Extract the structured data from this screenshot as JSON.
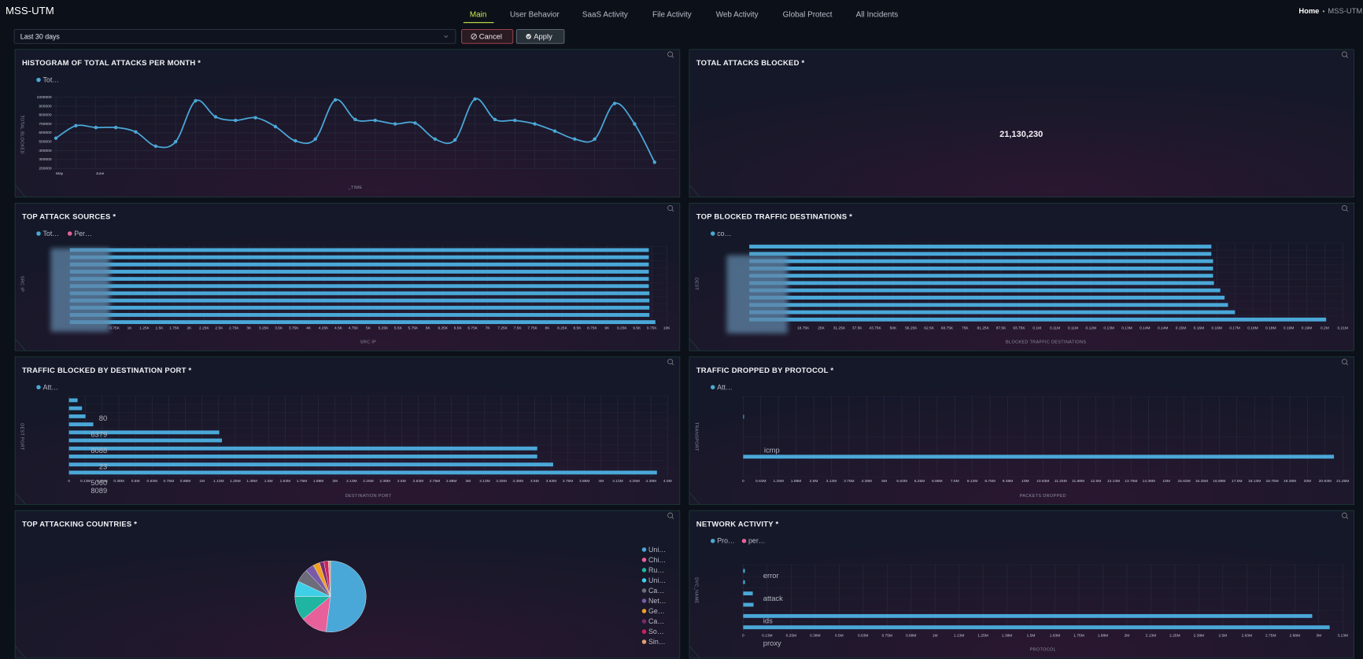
{
  "app_title": "MSS-UTM",
  "nav": [
    {
      "label": "Main",
      "active": true
    },
    {
      "label": "User Behavior",
      "active": false
    },
    {
      "label": "SaaS Activity",
      "active": false
    },
    {
      "label": "File Activity",
      "active": false
    },
    {
      "label": "Web Activity",
      "active": false
    },
    {
      "label": "Global Protect",
      "active": false
    },
    {
      "label": "All Incidents",
      "active": false
    }
  ],
  "breadcrumb": [
    "Home",
    "MSS-UTM"
  ],
  "filter": {
    "range": "Last 30 days",
    "cancel": "Cancel",
    "apply": "Apply"
  },
  "chart_data": [
    {
      "type": "line",
      "title": "HISTOGRAM OF TOTAL ATTACKS PER MONTH *",
      "x_label": "_TIME",
      "y_label": "TOTAL BLOCKED",
      "categories": [
        "May",
        null,
        "June",
        null,
        null,
        null,
        null,
        null,
        null,
        null,
        null,
        null,
        null,
        null,
        null,
        null,
        null,
        null,
        null,
        null,
        null,
        null,
        null,
        null,
        null,
        null,
        null,
        null,
        null,
        null,
        null
      ],
      "series": [
        {
          "name": "Tot…",
          "color": "#4aa8d8",
          "values": [
            540000,
            680000,
            660000,
            660000,
            610000,
            450000,
            500000,
            960000,
            780000,
            740000,
            770000,
            670000,
            510000,
            530000,
            970000,
            750000,
            740000,
            700000,
            710000,
            530000,
            520000,
            980000,
            750000,
            740000,
            700000,
            620000,
            530000,
            530000,
            930000,
            700000,
            270000
          ]
        }
      ],
      "ylim": [
        200000,
        1000000
      ],
      "yticks": [
        200000,
        300000,
        400000,
        500000,
        600000,
        700000,
        800000,
        900000,
        1000000
      ],
      "grid": true
    },
    {
      "type": "kpi",
      "title": "TOTAL ATTACKS BLOCKED *",
      "value": 21130230,
      "value_label": "21,130,230"
    },
    {
      "type": "hbar",
      "title": "TOP ATTACK SOURCES *",
      "x_label": "SRC IP",
      "y_label": "SRC IP",
      "categories": [
        null,
        null,
        null,
        null,
        null,
        null,
        null,
        null,
        null,
        null,
        null
      ],
      "series": [
        {
          "name": "Tot…",
          "color": "#4aa8d8",
          "values": [
            9700,
            9700,
            9700,
            9700,
            9700,
            9700,
            9710,
            9710,
            9710,
            9710,
            9810
          ]
        },
        {
          "name": "Per…",
          "color": "#e8609a",
          "values": [
            null,
            null,
            null,
            null,
            null,
            null,
            null,
            null,
            null,
            null,
            null
          ]
        }
      ],
      "xlim": [
        0,
        10000
      ],
      "xticks": [
        {
          "value": 750,
          "label": "0.75K"
        },
        {
          "value": 1000,
          "label": "1K"
        },
        {
          "value": 1250,
          "label": "1.25K"
        },
        {
          "value": 1500,
          "label": "1.5K"
        },
        {
          "value": 1750,
          "label": "1.75K"
        },
        {
          "value": 2000,
          "label": "2K"
        },
        {
          "value": 2250,
          "label": "2.25K"
        },
        {
          "value": 2500,
          "label": "2.5K"
        },
        {
          "value": 2750,
          "label": "2.75K"
        },
        {
          "value": 3000,
          "label": "3K"
        },
        {
          "value": 3250,
          "label": "3.25K"
        },
        {
          "value": 3500,
          "label": "3.5K"
        },
        {
          "value": 3750,
          "label": "3.75K"
        },
        {
          "value": 4000,
          "label": "4K"
        },
        {
          "value": 4250,
          "label": "4.25K"
        },
        {
          "value": 4500,
          "label": "4.5K"
        },
        {
          "value": 4750,
          "label": "4.75K"
        },
        {
          "value": 5000,
          "label": "5K"
        },
        {
          "value": 5250,
          "label": "5.25K"
        },
        {
          "value": 5500,
          "label": "5.5K"
        },
        {
          "value": 5750,
          "label": "5.75K"
        },
        {
          "value": 6000,
          "label": "6K"
        },
        {
          "value": 6250,
          "label": "6.25K"
        },
        {
          "value": 6500,
          "label": "6.5K"
        },
        {
          "value": 6750,
          "label": "6.75K"
        },
        {
          "value": 7000,
          "label": "7K"
        },
        {
          "value": 7250,
          "label": "7.25K"
        },
        {
          "value": 7500,
          "label": "7.5K"
        },
        {
          "value": 7750,
          "label": "7.75K"
        },
        {
          "value": 8000,
          "label": "8K"
        },
        {
          "value": 8250,
          "label": "8.25K"
        },
        {
          "value": 8500,
          "label": "8.5K"
        },
        {
          "value": 8750,
          "label": "8.75K"
        },
        {
          "value": 9000,
          "label": "9K"
        },
        {
          "value": 9250,
          "label": "9.25K"
        },
        {
          "value": 9500,
          "label": "9.5K"
        },
        {
          "value": 9750,
          "label": "9.75K"
        },
        {
          "value": 10000,
          "label": "10K"
        }
      ],
      "grid": true
    },
    {
      "type": "hbar",
      "title": "TOP BLOCKED TRAFFIC DESTINATIONS *",
      "x_label": "BLOCKED TRAFFIC DESTINATIONS",
      "y_label": "DEST",
      "categories": [
        null,
        null,
        null,
        null,
        null,
        null,
        null,
        null,
        null,
        null,
        null
      ],
      "series": [
        {
          "name": "co…",
          "color": "#4aa8d8",
          "values": [
            160600,
            160600,
            161200,
            161200,
            161200,
            161500,
            163700,
            165200,
            166400,
            168800,
            200500
          ]
        }
      ],
      "xlim": [
        0,
        206250
      ],
      "xticks": [
        {
          "value": 18750,
          "label": "18.75K"
        },
        {
          "value": 25000,
          "label": "25K"
        },
        {
          "value": 31250,
          "label": "31.25K"
        },
        {
          "value": 37500,
          "label": "37.5K"
        },
        {
          "value": 43750,
          "label": "43.75K"
        },
        {
          "value": 50000,
          "label": "50K"
        },
        {
          "value": 56250,
          "label": "56.25K"
        },
        {
          "value": 62500,
          "label": "62.5K"
        },
        {
          "value": 68750,
          "label": "68.75K"
        },
        {
          "value": 75000,
          "label": "75K"
        },
        {
          "value": 81250,
          "label": "81.25K"
        },
        {
          "value": 87500,
          "label": "87.5K"
        },
        {
          "value": 93750,
          "label": "93.75K"
        },
        {
          "value": 100000,
          "label": "0.1M"
        },
        {
          "value": 106250,
          "label": "0.11M"
        },
        {
          "value": 112500,
          "label": "0.11M"
        },
        {
          "value": 118750,
          "label": "0.12M"
        },
        {
          "value": 125000,
          "label": "0.13M"
        },
        {
          "value": 131250,
          "label": "0.13M"
        },
        {
          "value": 137500,
          "label": "0.14M"
        },
        {
          "value": 143750,
          "label": "0.14M"
        },
        {
          "value": 150000,
          "label": "0.15M"
        },
        {
          "value": 156250,
          "label": "0.16M"
        },
        {
          "value": 162500,
          "label": "0.16M"
        },
        {
          "value": 168750,
          "label": "0.17M"
        },
        {
          "value": 175000,
          "label": "0.18M"
        },
        {
          "value": 181250,
          "label": "0.18M"
        },
        {
          "value": 187500,
          "label": "0.19M"
        },
        {
          "value": 193750,
          "label": "0.19M"
        },
        {
          "value": 200000,
          "label": "0.2M"
        },
        {
          "value": 206250,
          "label": "0.21M"
        }
      ],
      "grid": true
    },
    {
      "type": "hbar",
      "title": "TRAFFIC BLOCKED BY DESTINATION PORT *",
      "x_label": "DESTINATION PORT",
      "y_label": "DEST PORT",
      "categories": [
        null,
        null,
        "80",
        null,
        "6379",
        null,
        "8088",
        null,
        "23",
        null,
        "5060",
        "8089"
      ],
      "series": [
        {
          "name": "Att…",
          "color": "#4aa8d8",
          "values": [
            65000,
            98000,
            124000,
            183000,
            1130000,
            1150000,
            3520000,
            3520000,
            3640000,
            4420000,
            null,
            null
          ]
        }
      ],
      "xlim": [
        0,
        4500000
      ],
      "xticks": [
        0,
        {
          "value": 125000,
          "label": "0.13M"
        },
        {
          "value": 250000,
          "label": "0.25M"
        },
        {
          "value": 375000,
          "label": "0.38M"
        },
        {
          "value": 500000,
          "label": "0.5M"
        },
        {
          "value": 625000,
          "label": "0.63M"
        },
        {
          "value": 750000,
          "label": "0.75M"
        },
        {
          "value": 875000,
          "label": "0.88M"
        },
        {
          "value": 1000000,
          "label": "1M"
        },
        {
          "value": 1125000,
          "label": "1.13M"
        },
        {
          "value": 1250000,
          "label": "1.25M"
        },
        {
          "value": 1375000,
          "label": "1.38M"
        },
        {
          "value": 1500000,
          "label": "1.5M"
        },
        {
          "value": 1625000,
          "label": "1.63M"
        },
        {
          "value": 1750000,
          "label": "1.75M"
        },
        {
          "value": 1875000,
          "label": "1.88M"
        },
        {
          "value": 2000000,
          "label": "2M"
        },
        {
          "value": 2125000,
          "label": "2.13M"
        },
        {
          "value": 2250000,
          "label": "2.25M"
        },
        {
          "value": 2375000,
          "label": "2.38M"
        },
        {
          "value": 2500000,
          "label": "2.5M"
        },
        {
          "value": 2625000,
          "label": "2.63M"
        },
        {
          "value": 2750000,
          "label": "2.75M"
        },
        {
          "value": 2875000,
          "label": "2.88M"
        },
        {
          "value": 3000000,
          "label": "3M"
        },
        {
          "value": 3125000,
          "label": "3.13M"
        },
        {
          "value": 3250000,
          "label": "3.25M"
        },
        {
          "value": 3375000,
          "label": "3.38M"
        },
        {
          "value": 3500000,
          "label": "3.5M"
        },
        {
          "value": 3625000,
          "label": "3.63M"
        },
        {
          "value": 3750000,
          "label": "3.75M"
        },
        {
          "value": 3875000,
          "label": "3.88M"
        },
        {
          "value": 4000000,
          "label": "4M"
        },
        {
          "value": 4125000,
          "label": "4.13M"
        },
        {
          "value": 4250000,
          "label": "4.25M"
        },
        {
          "value": 4375000,
          "label": "4.38M"
        },
        {
          "value": 4500000,
          "label": "4.5M"
        }
      ],
      "grid": true
    },
    {
      "type": "hbar",
      "title": "TRAFFIC DROPPED BY PROTOCOL *",
      "x_label": "PACKETS DROPPED",
      "y_label": "TRANSPORT",
      "categories": [
        null,
        "icmp"
      ],
      "series": [
        {
          "name": "Att…",
          "color": "#4aa8d8",
          "values": [
            30000,
            20940000
          ]
        }
      ],
      "xlim": [
        0,
        21250000
      ],
      "xticks": [
        0,
        {
          "value": 625000,
          "label": "0.63M"
        },
        {
          "value": 1250000,
          "label": "1.25M"
        },
        {
          "value": 1875000,
          "label": "1.88M"
        },
        {
          "value": 2500000,
          "label": "2.5M"
        },
        {
          "value": 3125000,
          "label": "3.13M"
        },
        {
          "value": 3750000,
          "label": "3.75M"
        },
        {
          "value": 4375000,
          "label": "4.38M"
        },
        {
          "value": 5000000,
          "label": "5M"
        },
        {
          "value": 5625000,
          "label": "5.63M"
        },
        {
          "value": 6250000,
          "label": "6.25M"
        },
        {
          "value": 6875000,
          "label": "6.88M"
        },
        {
          "value": 7500000,
          "label": "7.5M"
        },
        {
          "value": 8125000,
          "label": "8.13M"
        },
        {
          "value": 8750000,
          "label": "8.75M"
        },
        {
          "value": 9375000,
          "label": "9.38M"
        },
        {
          "value": 10000000,
          "label": "10M"
        },
        {
          "value": 10625000,
          "label": "10.63M"
        },
        {
          "value": 11250000,
          "label": "11.25M"
        },
        {
          "value": 11875000,
          "label": "11.88M"
        },
        {
          "value": 12500000,
          "label": "12.5M"
        },
        {
          "value": 13125000,
          "label": "13.13M"
        },
        {
          "value": 13750000,
          "label": "13.75M"
        },
        {
          "value": 14375000,
          "label": "14.38M"
        },
        {
          "value": 15000000,
          "label": "15M"
        },
        {
          "value": 15625000,
          "label": "15.63M"
        },
        {
          "value": 16250000,
          "label": "16.25M"
        },
        {
          "value": 16875000,
          "label": "16.88M"
        },
        {
          "value": 17500000,
          "label": "17.5M"
        },
        {
          "value": 18125000,
          "label": "18.13M"
        },
        {
          "value": 18750000,
          "label": "18.75M"
        },
        {
          "value": 19375000,
          "label": "19.38M"
        },
        {
          "value": 20000000,
          "label": "20M"
        },
        {
          "value": 20625000,
          "label": "20.63M"
        },
        {
          "value": 21250000,
          "label": "21.25M"
        }
      ],
      "grid": true
    },
    {
      "type": "pie",
      "title": "TOP ATTACKING COUNTRIES *",
      "categories": [
        "Uni…",
        "Chi…",
        "Ru…",
        "Uni…",
        "Ca…",
        "Net…",
        "Ge…",
        "Ca…",
        "So…",
        "Sin…"
      ],
      "values": [
        52,
        12,
        11,
        7,
        6,
        4,
        3,
        2,
        2,
        1
      ],
      "colors": [
        "#4aa8d8",
        "#e8609a",
        "#1fb5a0",
        "#3fd0e8",
        "#6c6c7a",
        "#7a5aa8",
        "#f0a020",
        "#7a2a6a",
        "#d02060",
        "#e0a070"
      ]
    },
    {
      "type": "hbar",
      "title": "NETWORK ACTIVITY *",
      "x_label": "PROTOCOL",
      "y_label": "DVC_NAME",
      "categories": [
        "error",
        null,
        "attack",
        null,
        "ids",
        null,
        "proxy",
        null
      ],
      "series": [
        {
          "name": "Pro…",
          "color": "#4aa8d8",
          "values": [
            9000,
            9000,
            50000,
            54000,
            2966000,
            3057000,
            null,
            null
          ]
        },
        {
          "name": "per…",
          "color": "#e8609a",
          "values": [
            null,
            null,
            null,
            null,
            null,
            null,
            null,
            null
          ]
        }
      ],
      "xlim": [
        0,
        3125000
      ],
      "xticks": [
        0,
        {
          "value": 125000,
          "label": "0.13M"
        },
        {
          "value": 250000,
          "label": "0.25M"
        },
        {
          "value": 375000,
          "label": "0.38M"
        },
        {
          "value": 500000,
          "label": "0.5M"
        },
        {
          "value": 625000,
          "label": "0.63M"
        },
        {
          "value": 750000,
          "label": "0.75M"
        },
        {
          "value": 875000,
          "label": "0.88M"
        },
        {
          "value": 1000000,
          "label": "1M"
        },
        {
          "value": 1125000,
          "label": "1.13M"
        },
        {
          "value": 1250000,
          "label": "1.25M"
        },
        {
          "value": 1375000,
          "label": "1.38M"
        },
        {
          "value": 1500000,
          "label": "1.5M"
        },
        {
          "value": 1625000,
          "label": "1.63M"
        },
        {
          "value": 1750000,
          "label": "1.75M"
        },
        {
          "value": 1875000,
          "label": "1.88M"
        },
        {
          "value": 2000000,
          "label": "2M"
        },
        {
          "value": 2125000,
          "label": "2.13M"
        },
        {
          "value": 2250000,
          "label": "2.25M"
        },
        {
          "value": 2375000,
          "label": "2.38M"
        },
        {
          "value": 2500000,
          "label": "2.5M"
        },
        {
          "value": 2625000,
          "label": "2.63M"
        },
        {
          "value": 2750000,
          "label": "2.75M"
        },
        {
          "value": 2875000,
          "label": "2.88M"
        },
        {
          "value": 3000000,
          "label": "3M"
        },
        {
          "value": 3125000,
          "label": "3.13M"
        }
      ],
      "grid": true
    }
  ]
}
